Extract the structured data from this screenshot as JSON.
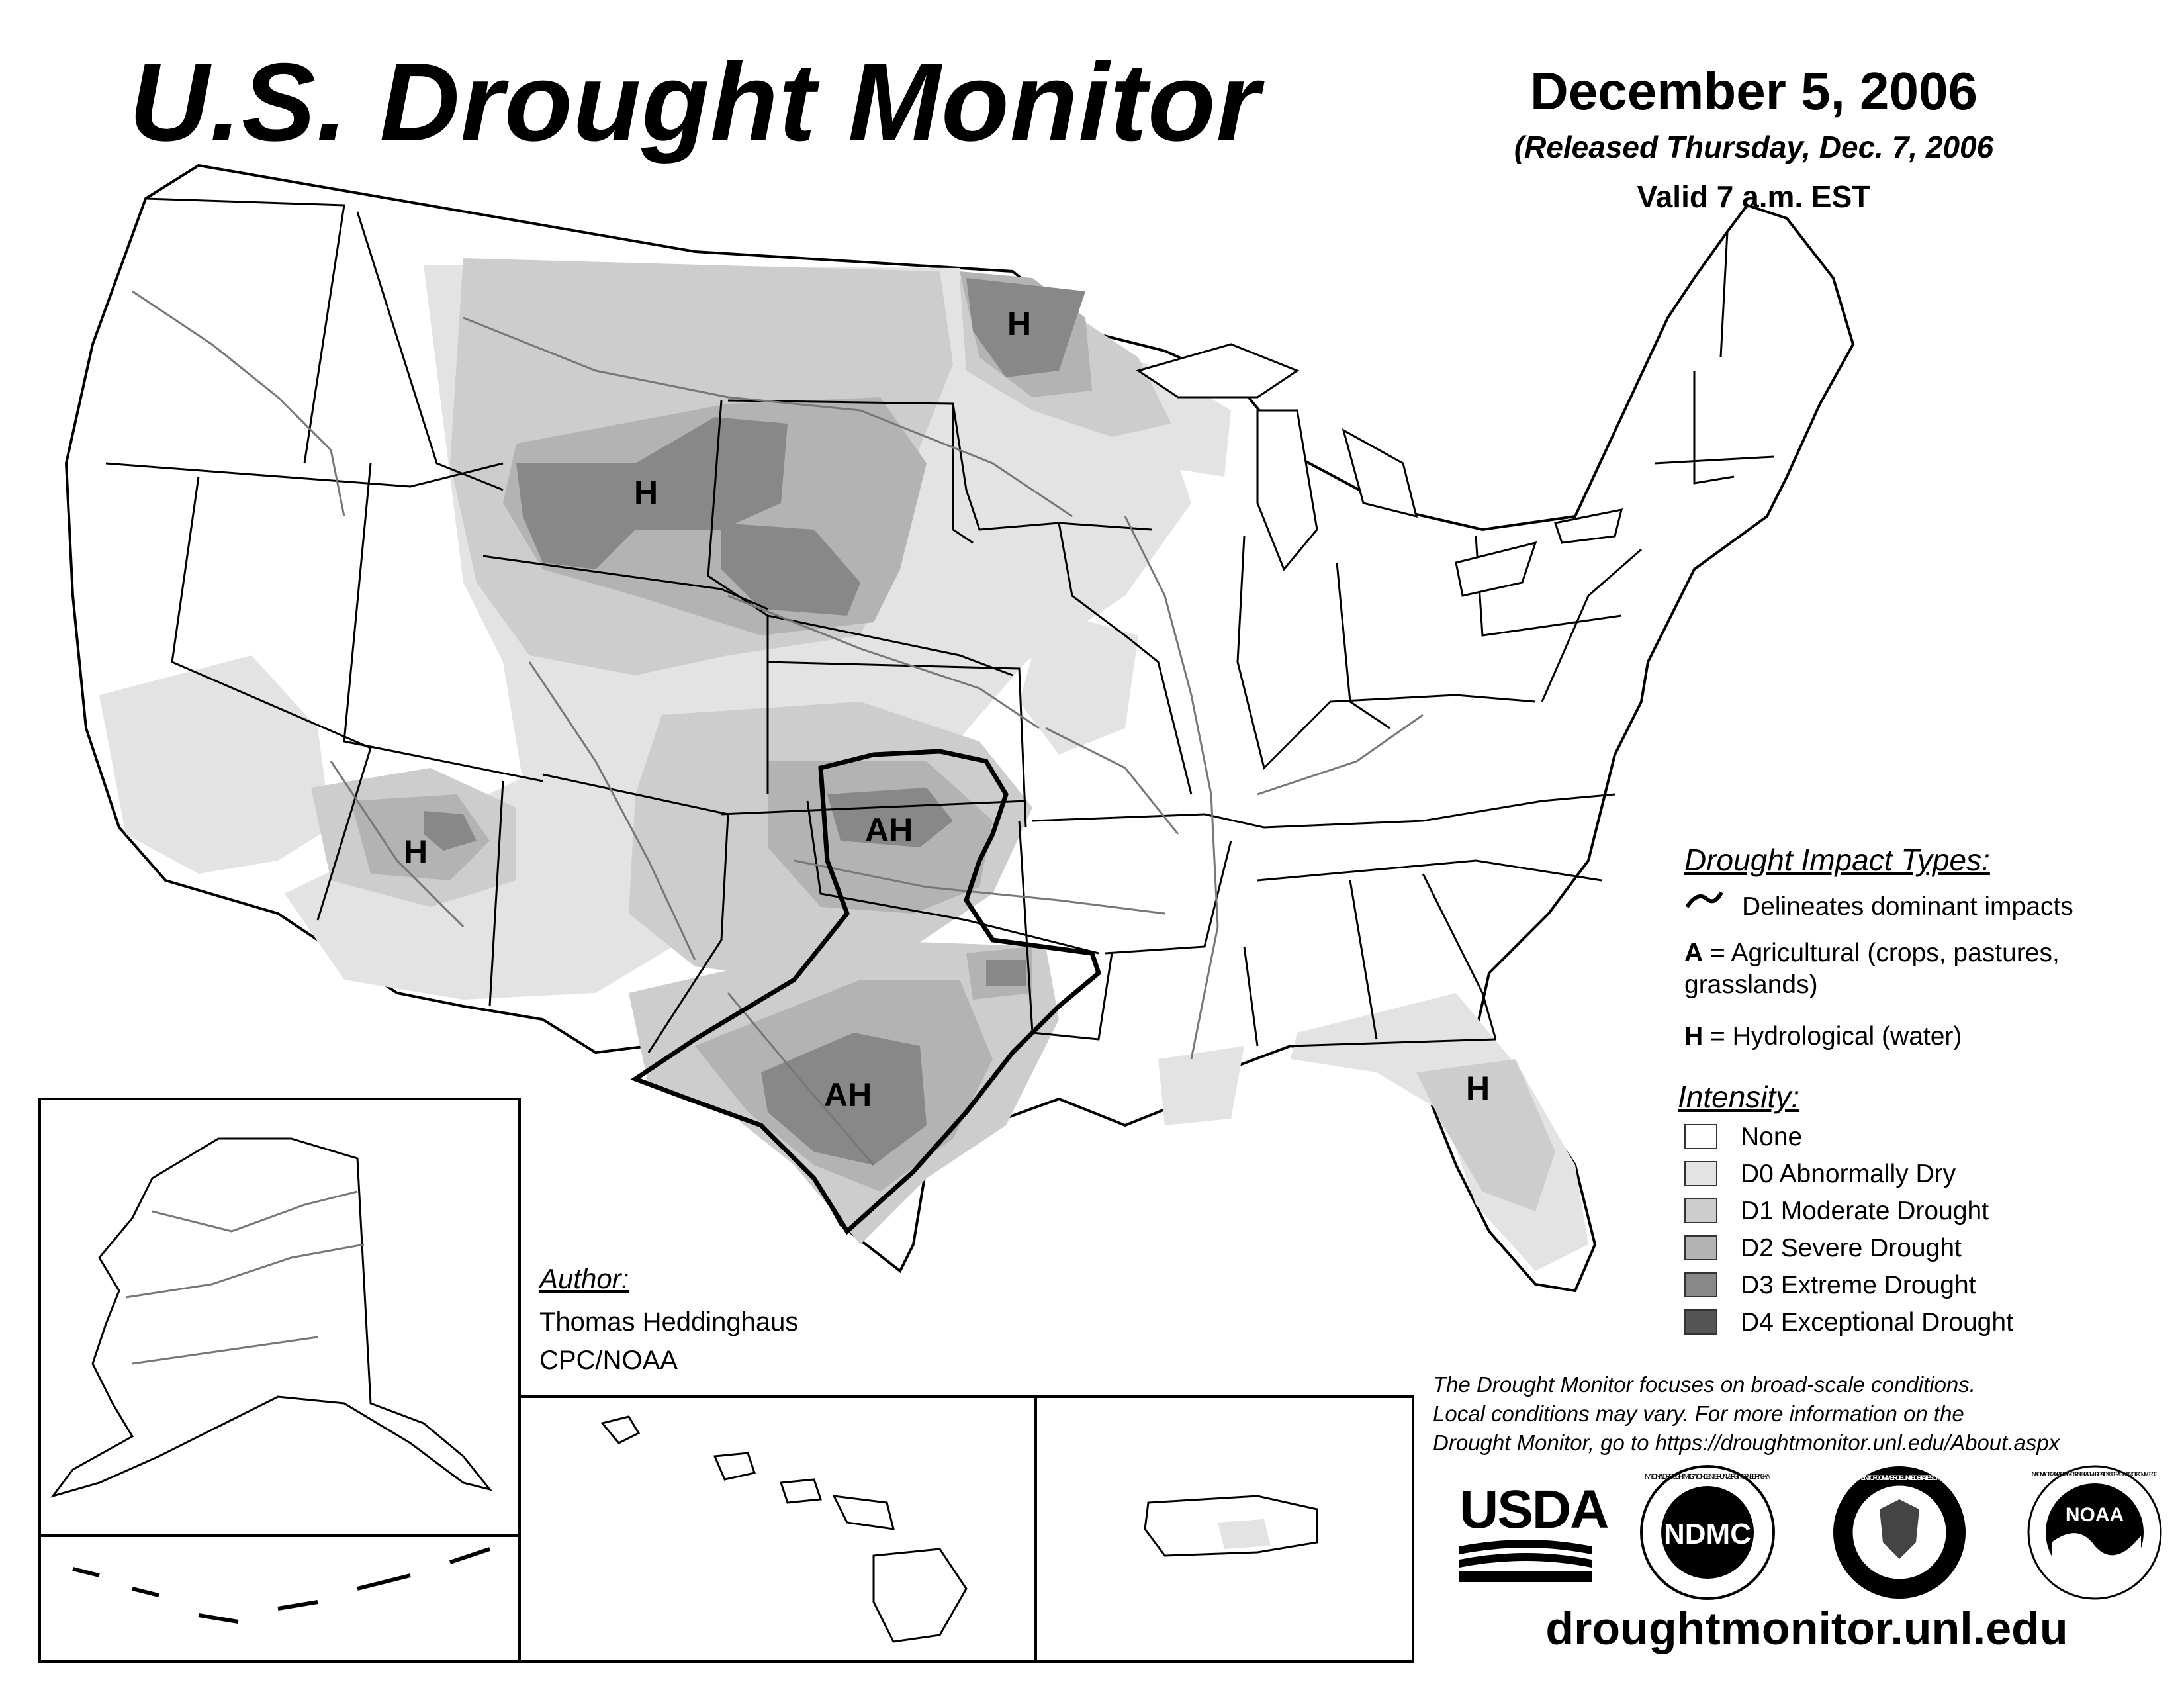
{
  "header": {
    "title": "U.S. Drought Monitor",
    "date": "December 5, 2006",
    "released": "(Released Thursday, Dec. 7, 2006",
    "valid": "Valid 7 a.m. EST"
  },
  "map_labels": [
    "H",
    "H",
    "H",
    "AH",
    "AH",
    "H"
  ],
  "impact_legend": {
    "heading": "Drought Impact Types:",
    "delineates": "Delineates dominant impacts",
    "a_key": "A",
    "a_text": "= Agricultural (crops, pastures,",
    "a_text2": "grasslands)",
    "h_key": "H",
    "h_text": "= Hydrological (water)"
  },
  "intensity_legend": {
    "heading": "Intensity:",
    "items": [
      {
        "label": "None",
        "color": "#ffffff"
      },
      {
        "label": "D0 Abnormally Dry",
        "color": "#e3e3e3"
      },
      {
        "label": "D1 Moderate Drought",
        "color": "#cdcdcd"
      },
      {
        "label": "D2 Severe Drought",
        "color": "#b3b3b3"
      },
      {
        "label": "D3 Extreme Drought",
        "color": "#888888"
      },
      {
        "label": "D4 Exceptional Drought",
        "color": "#555555"
      }
    ]
  },
  "author": {
    "heading": "Author:",
    "name": "Thomas Heddinghaus",
    "org": "CPC/NOAA"
  },
  "disclaimer": {
    "line1": "The Drought Monitor focuses on broad-scale conditions.",
    "line2": "Local conditions may vary. For more information on the",
    "line3": "Drought Monitor, go to https://droughtmonitor.unl.edu/About.aspx"
  },
  "logos": {
    "usda": "USDA",
    "ndmc": "NDMC",
    "ndmc_ring": "NATIONAL DROUGHT MITIGATION CENTER · UNIVERSITY OF NEBRASKA",
    "doc_ring": "DEPARTMENT OF COMMERCE · UNITED STATES OF AMERICA",
    "noaa": "NOAA",
    "noaa_ring": "NATIONAL OCEANIC AND ATMOSPHERIC ADMINISTRATION · U.S. DEPARTMENT OF COMMERCE"
  },
  "url": "droughtmonitor.unl.edu"
}
